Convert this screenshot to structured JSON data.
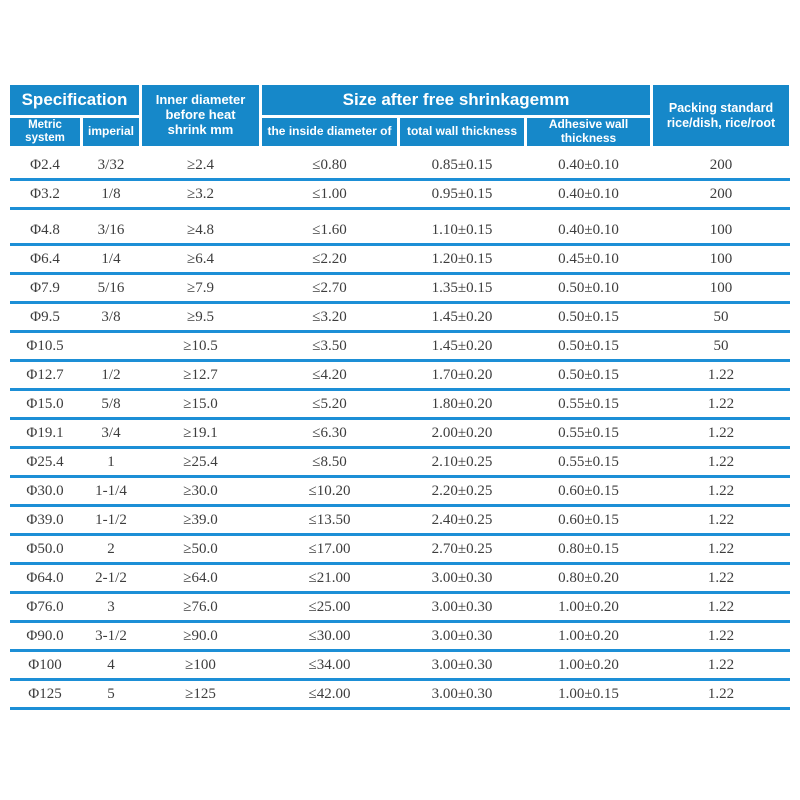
{
  "header": {
    "specification": "Specification",
    "metric_system": "Metric system",
    "imperial": "imperial",
    "inner_diameter_before": "Inner diameter before heat shrink mm",
    "size_after_free_shrinkage": "Size after free shrinkagemm",
    "inside_diameter": "the inside diameter of",
    "total_wall_thickness": "total wall thickness",
    "adhesive_wall_thickness": "Adhesive wall thickness",
    "packing_standard_line1": "Packing standard",
    "packing_standard_line2": "rice/dish, rice/root"
  },
  "columns": [
    "metric_system",
    "imperial",
    "inner_diameter_before_heat_shrink_mm",
    "inside_diameter_after_shrinkage",
    "total_wall_thickness",
    "adhesive_wall_thickness",
    "packing_standard"
  ],
  "rows": [
    [
      "Φ2.4",
      "3/32",
      "≥2.4",
      "≤0.80",
      "0.85±0.15",
      "0.40±0.10",
      "200"
    ],
    [
      "Φ3.2",
      "1/8",
      "≥3.2",
      "≤1.00",
      "0.95±0.15",
      "0.40±0.10",
      "200"
    ],
    [
      "Φ4.8",
      "3/16",
      "≥4.8",
      "≤1.60",
      "1.10±0.15",
      "0.40±0.10",
      "100"
    ],
    [
      "Φ6.4",
      "1/4",
      "≥6.4",
      "≤2.20",
      "1.20±0.15",
      "0.45±0.10",
      "100"
    ],
    [
      "Φ7.9",
      "5/16",
      "≥7.9",
      "≤2.70",
      "1.35±0.15",
      "0.50±0.10",
      "100"
    ],
    [
      "Φ9.5",
      "3/8",
      "≥9.5",
      "≤3.20",
      "1.45±0.20",
      "0.50±0.15",
      "50"
    ],
    [
      "Φ10.5",
      "",
      "≥10.5",
      "≤3.50",
      "1.45±0.20",
      "0.50±0.15",
      "50"
    ],
    [
      "Φ12.7",
      "1/2",
      "≥12.7",
      "≤4.20",
      "1.70±0.20",
      "0.50±0.15",
      "1.22"
    ],
    [
      "Φ15.0",
      "5/8",
      "≥15.0",
      "≤5.20",
      "1.80±0.20",
      "0.55±0.15",
      "1.22"
    ],
    [
      "Φ19.1",
      "3/4",
      "≥19.1",
      "≤6.30",
      "2.00±0.20",
      "0.55±0.15",
      "1.22"
    ],
    [
      "Φ25.4",
      "1",
      "≥25.4",
      "≤8.50",
      "2.10±0.25",
      "0.55±0.15",
      "1.22"
    ],
    [
      "Φ30.0",
      "1-1/4",
      "≥30.0",
      "≤10.20",
      "2.20±0.25",
      "0.60±0.15",
      "1.22"
    ],
    [
      "Φ39.0",
      "1-1/2",
      "≥39.0",
      "≤13.50",
      "2.40±0.25",
      "0.60±0.15",
      "1.22"
    ],
    [
      "Φ50.0",
      "2",
      "≥50.0",
      "≤17.00",
      "2.70±0.25",
      "0.80±0.15",
      "1.22"
    ],
    [
      "Φ64.0",
      "2-1/2",
      "≥64.0",
      "≤21.00",
      "3.00±0.30",
      "0.80±0.20",
      "1.22"
    ],
    [
      "Φ76.0",
      "3",
      "≥76.0",
      "≤25.00",
      "3.00±0.30",
      "1.00±0.20",
      "1.22"
    ],
    [
      "Φ90.0",
      "3-1/2",
      "≥90.0",
      "≤30.00",
      "3.00±0.30",
      "1.00±0.20",
      "1.22"
    ],
    [
      "Φ100",
      "4",
      "≥100",
      "≤34.00",
      "3.00±0.30",
      "1.00±0.20",
      "1.22"
    ],
    [
      "Φ125",
      "5",
      "≥125",
      "≤42.00",
      "3.00±0.30",
      "1.00±0.15",
      "1.22"
    ]
  ],
  "group_gap_before_row_index": 2,
  "colors": {
    "header_blue": "#1688c9",
    "row_line_blue": "#1d8fd6",
    "text_dark": "#3d3d3d",
    "header_text": "#ffffff"
  }
}
